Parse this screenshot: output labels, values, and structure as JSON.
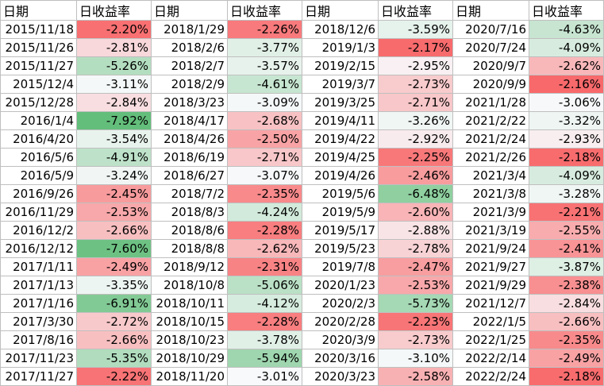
{
  "headers": [
    "日期",
    "日收益率",
    "日期",
    "日收益率",
    "日期",
    "日收益率",
    "日期",
    "日收益率"
  ],
  "rows": [
    [
      "2015/11/18",
      "-2.20%",
      "2018/1/29",
      "-2.26%",
      "2018/12/6",
      "-3.59%",
      "2020/7/16",
      "-4.63%"
    ],
    [
      "2015/11/26",
      "-2.81%",
      "2018/2/6",
      "-3.77%",
      "2019/1/3",
      "-2.17%",
      "2020/7/24",
      "-4.09%"
    ],
    [
      "2015/11/27",
      "-5.26%",
      "2018/2/7",
      "-3.57%",
      "2019/2/15",
      "-2.95%",
      "2020/9/7",
      "-2.62%"
    ],
    [
      "2015/12/4",
      "-3.11%",
      "2018/2/9",
      "-4.61%",
      "2019/3/7",
      "-2.73%",
      "2020/9/9",
      "-2.16%"
    ],
    [
      "2015/12/28",
      "-2.84%",
      "2018/3/23",
      "-3.09%",
      "2019/3/25",
      "-2.71%",
      "2021/1/28",
      "-3.06%"
    ],
    [
      "2016/1/4",
      "-7.92%",
      "2018/4/17",
      "-2.68%",
      "2019/4/11",
      "-3.26%",
      "2021/2/22",
      "-3.32%"
    ],
    [
      "2016/4/20",
      "-3.54%",
      "2018/4/26",
      "-2.50%",
      "2019/4/22",
      "-2.92%",
      "2021/2/24",
      "-2.93%"
    ],
    [
      "2016/5/6",
      "-4.91%",
      "2018/6/19",
      "-2.71%",
      "2019/4/25",
      "-2.25%",
      "2021/2/26",
      "-2.18%"
    ],
    [
      "2016/5/9",
      "-3.24%",
      "2018/6/27",
      "-3.07%",
      "2019/4/26",
      "-2.46%",
      "2021/3/4",
      "-4.09%"
    ],
    [
      "2016/9/26",
      "-2.45%",
      "2018/7/2",
      "-2.35%",
      "2019/5/6",
      "-6.48%",
      "2021/3/8",
      "-3.28%"
    ],
    [
      "2016/11/29",
      "-2.53%",
      "2018/8/3",
      "-4.24%",
      "2019/5/9",
      "-2.60%",
      "2021/3/9",
      "-2.21%"
    ],
    [
      "2016/12/2",
      "-2.66%",
      "2018/8/6",
      "-2.28%",
      "2019/5/17",
      "-2.88%",
      "2021/3/19",
      "-2.55%"
    ],
    [
      "2016/12/12",
      "-7.60%",
      "2018/8/8",
      "-2.62%",
      "2019/5/23",
      "-2.78%",
      "2021/9/24",
      "-2.41%"
    ],
    [
      "2017/1/11",
      "-2.49%",
      "2018/9/12",
      "-2.31%",
      "2019/7/8",
      "-2.47%",
      "2021/9/27",
      "-3.87%"
    ],
    [
      "2017/1/13",
      "-3.35%",
      "2018/10/8",
      "-5.06%",
      "2020/1/23",
      "-2.53%",
      "2021/9/29",
      "-2.38%"
    ],
    [
      "2017/1/16",
      "-6.91%",
      "2018/10/11",
      "-4.12%",
      "2020/2/3",
      "-5.73%",
      "2021/12/7",
      "-2.84%"
    ],
    [
      "2017/3/30",
      "-2.72%",
      "2018/10/15",
      "-2.28%",
      "2020/2/28",
      "-2.23%",
      "2022/1/5",
      "-2.66%"
    ],
    [
      "2017/8/16",
      "-2.66%",
      "2018/10/23",
      "-3.78%",
      "2020/3/9",
      "-2.73%",
      "2022/1/25",
      "-2.35%"
    ],
    [
      "2017/11/23",
      "-5.35%",
      "2018/10/29",
      "-5.94%",
      "2020/3/16",
      "-3.10%",
      "2022/2/14",
      "-2.49%"
    ],
    [
      "2017/11/27",
      "-2.22%",
      "2018/11/20",
      "-3.01%",
      "2020/3/23",
      "-2.58%",
      "2022/2/24",
      "-2.18%"
    ]
  ],
  "color_scale": {
    "most_negative": "#63be7b",
    "midpoint": "#f8f9fb",
    "least_negative": "#f8696b",
    "min": -7.92,
    "mid": -3.0,
    "max": -2.16
  }
}
